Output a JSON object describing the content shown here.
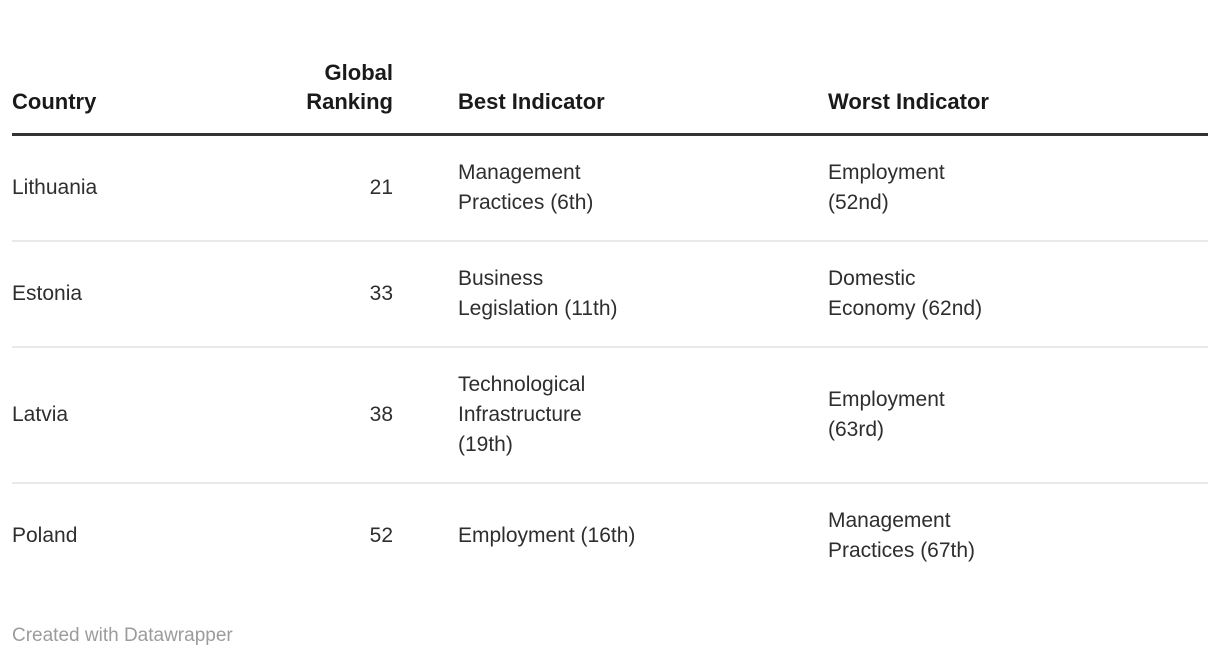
{
  "table": {
    "columns": [
      {
        "label": "Country"
      },
      {
        "label": "Global Ranking"
      },
      {
        "label": "Best Indicator"
      },
      {
        "label": "Worst Indicator"
      }
    ],
    "rows": [
      {
        "country": "Lithuania",
        "global_ranking": "21",
        "best_indicator": "Management Practices (6th)",
        "best_lines": [
          "Management",
          "Practices (6th)"
        ],
        "worst_indicator": "Employment (52nd)",
        "worst_lines": [
          "Employment",
          "(52nd)"
        ]
      },
      {
        "country": "Estonia",
        "global_ranking": "33",
        "best_indicator": "Business Legislation (11th)",
        "best_lines": [
          "Business",
          "Legislation (11th)"
        ],
        "worst_indicator": "Domestic Economy (62nd)",
        "worst_lines": [
          "Domestic",
          "Economy (62nd)"
        ]
      },
      {
        "country": "Latvia",
        "global_ranking": "38",
        "best_indicator": "Technological Infrastructure (19th)",
        "best_lines": [
          "Technological",
          "Infrastructure",
          "(19th)"
        ],
        "worst_indicator": "Employment (63rd)",
        "worst_lines": [
          "Employment",
          "(63rd)"
        ]
      },
      {
        "country": "Poland",
        "global_ranking": "52",
        "best_indicator": "Employment (16th)",
        "best_lines": [
          "Employment (16th)"
        ],
        "worst_indicator": "Management Practices (67th)",
        "worst_lines": [
          "Management",
          "Practices (67th)"
        ]
      }
    ]
  },
  "footer": {
    "credit": "Created with Datawrapper"
  },
  "colors": {
    "header_text": "#1a1a1a",
    "body_text": "#2e2e2e",
    "header_rule": "#333333",
    "row_divider": "#e9e9e9",
    "footer_text": "#9c9c9c",
    "background": "#ffffff"
  },
  "chart_data": {
    "type": "table",
    "title": "",
    "columns": [
      "Country",
      "Global Ranking",
      "Best Indicator",
      "Worst Indicator"
    ],
    "rows": [
      [
        "Lithuania",
        21,
        "Management Practices (6th)",
        "Employment (52nd)"
      ],
      [
        "Estonia",
        33,
        "Business Legislation (11th)",
        "Domestic Economy (62nd)"
      ],
      [
        "Latvia",
        38,
        "Technological Infrastructure (19th)",
        "Employment (63rd)"
      ],
      [
        "Poland",
        52,
        "Employment (16th)",
        "Management Practices (67th)"
      ]
    ],
    "credit": "Created with Datawrapper"
  }
}
